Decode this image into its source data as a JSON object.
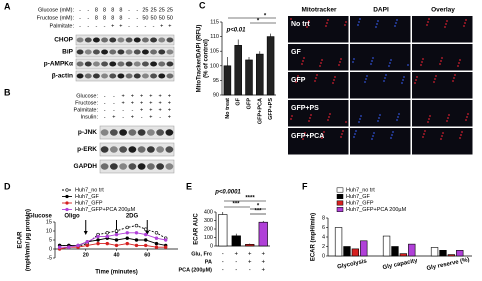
{
  "panel_letters": [
    "A",
    "B",
    "C",
    "D",
    "E",
    "F"
  ],
  "blot_a": {
    "conditions": [
      {
        "label": "Glucose (mM):",
        "values": [
          "-",
          "-",
          "8",
          "8",
          "8",
          "8",
          "-",
          "-",
          "25",
          "25",
          "25",
          "25"
        ]
      },
      {
        "label": "Fructose (mM):",
        "values": [
          "-",
          "-",
          "8",
          "8",
          "8",
          "8",
          "-",
          "-",
          "50",
          "50",
          "50",
          "50"
        ]
      },
      {
        "label": "Palmitate:",
        "values": [
          "-",
          "-",
          "-",
          "-",
          "+",
          "+",
          "-",
          "-",
          "-",
          "-",
          "+",
          "+"
        ]
      }
    ],
    "bands": [
      "CHOP",
      "BiP",
      "p-AMPKα",
      "β-actin"
    ]
  },
  "blot_b": {
    "conditions": [
      {
        "label": "Glucose:",
        "values": [
          "-",
          "-",
          "+",
          "+",
          "+",
          "+",
          "+",
          "+"
        ]
      },
      {
        "label": "Fructose:",
        "values": [
          "-",
          "-",
          "+",
          "+",
          "+",
          "+",
          "+",
          "+"
        ]
      },
      {
        "label": "Palmitate:",
        "values": [
          "-",
          "-",
          "-",
          "-",
          "+",
          "+",
          "+",
          "+"
        ]
      },
      {
        "label": "Insulin:",
        "values": [
          "-",
          "+",
          "-",
          "+",
          "-",
          "+",
          "-",
          "+"
        ]
      }
    ],
    "bands": [
      "p-JNK",
      "p-ERK",
      "GAPDH"
    ]
  },
  "images_c": {
    "columns": [
      "Mitotracker",
      "DAPI",
      "Overlay"
    ],
    "rows": [
      "No trt",
      "GF",
      "GFP",
      "GFP+PS",
      "GFP+PCA"
    ]
  },
  "chart_data": [
    {
      "type": "bar",
      "ylabel": [
        "MitoTracker/DAPI (RFU)",
        "(% of control)"
      ],
      "categories": [
        "No treat",
        "GF",
        "GFP",
        "GFP+PCA",
        "GFP+PS"
      ],
      "values": [
        100,
        107,
        102,
        104,
        110
      ],
      "errors": [
        3,
        2,
        1,
        1,
        1
      ],
      "colors": [
        "#222222",
        "#222222",
        "#222222",
        "#222222",
        "#222222"
      ],
      "ylim": [
        90,
        115
      ],
      "yticks": [
        90,
        95,
        100,
        105,
        110,
        115
      ],
      "annotations": [
        "p<0.01",
        "*",
        "*"
      ]
    },
    {
      "type": "line",
      "ylabel": [
        "ECAR",
        "(mpH/min/ µg protein)"
      ],
      "xlabel": "Time (minutes)",
      "x": [
        3,
        9,
        15,
        21,
        28,
        34,
        40,
        47,
        53,
        59,
        66,
        72
      ],
      "series": [
        {
          "name": "Huh7_no trt",
          "color": "#000000",
          "dashed": true,
          "values": [
            2,
            2,
            1.5,
            3,
            8,
            9,
            10,
            12,
            13,
            11,
            9,
            6
          ]
        },
        {
          "name": "Huh7_GF",
          "color": "#000000",
          "dashed": false,
          "values": [
            2,
            2,
            2,
            4,
            5,
            6,
            5,
            6,
            5,
            5,
            3,
            2
          ]
        },
        {
          "name": "Huh7_GFP",
          "color": "#d62020",
          "dashed": false,
          "values": [
            0,
            1,
            1,
            2,
            3,
            3,
            2,
            3,
            2,
            2,
            1,
            1
          ]
        },
        {
          "name": "Huh7_GFP+PCA 200µM",
          "color": "#b040d8",
          "dashed": false,
          "values": [
            1,
            1,
            2,
            4,
            7,
            7,
            8,
            9,
            9,
            8,
            6,
            5
          ]
        }
      ],
      "xlim": [
        0,
        80
      ],
      "xticks": [
        20,
        40,
        60
      ],
      "ylim": [
        -5,
        15
      ],
      "yticks": [
        -5,
        0,
        5,
        10,
        15
      ],
      "annotations": [
        "Glucose",
        "Oligo",
        "2DG"
      ]
    },
    {
      "type": "bar",
      "ylabel": [
        "ECAR AUC"
      ],
      "values": [
        370,
        120,
        20,
        280
      ],
      "errors": [
        30,
        25,
        8,
        15
      ],
      "colors": [
        "#ffffff",
        "#000000",
        "#d62020",
        "#b040d8"
      ],
      "ylim": [
        0,
        400
      ],
      "yticks": [
        0,
        100,
        200,
        300,
        400
      ],
      "annotations": [
        "p<0.0001",
        "****",
        "***",
        "*",
        "***"
      ],
      "conditions": [
        {
          "label": "Glu, Frc",
          "values": [
            "-",
            "+",
            "+",
            "+"
          ]
        },
        {
          "label": "PA",
          "values": [
            "-",
            "-",
            "+",
            "+"
          ]
        },
        {
          "label": "PCA (200µM)",
          "values": [
            "-",
            "-",
            "-",
            "+"
          ]
        }
      ]
    },
    {
      "type": "grouped_bar",
      "ylabel": [
        "ECAR (mpH/min)"
      ],
      "categories": [
        "Glycolysis",
        "Gly capacity",
        "Gly reserve (%)"
      ],
      "series": [
        {
          "name": "Huh7_no trt",
          "color": "#ffffff",
          "values": [
            6,
            4.2,
            1.8
          ]
        },
        {
          "name": "Huh7_GF",
          "color": "#000000",
          "values": [
            2,
            2,
            1.2
          ]
        },
        {
          "name": "Huh7_GFP",
          "color": "#d62020",
          "values": [
            1.5,
            0.5,
            0.3
          ]
        },
        {
          "name": "Huh7_GFP+PCA 200µM",
          "color": "#b040d8",
          "values": [
            3.2,
            2.5,
            1.2
          ]
        }
      ],
      "ylim": [
        0,
        8
      ],
      "yticks": [
        0,
        2,
        4,
        6,
        8
      ]
    }
  ]
}
